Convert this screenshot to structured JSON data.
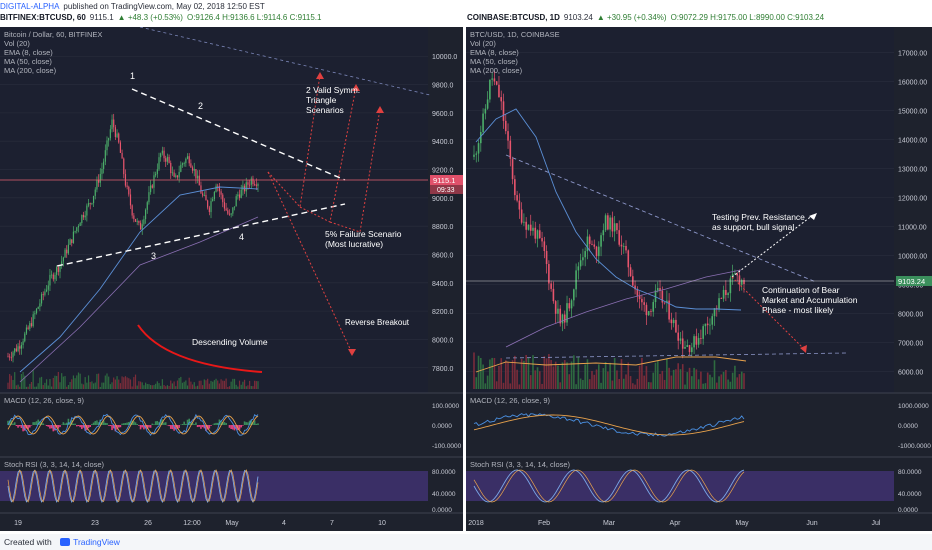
{
  "header": {
    "line1": {
      "user": "DIGITAL-ALPHA",
      "text": "published on TradingView.com, May 02, 2018 12:50 EST"
    },
    "left": {
      "symbol": "BITFINEX:BTCUSD, 60",
      "price": "9115.1",
      "change": "▲ +48.3 (+0.53%)",
      "ohlc": "O:9126.4 H:9136.6 L:9114.6 C:9115.1"
    },
    "right": {
      "symbol": "COINBASE:BTCUSD, 1D",
      "price": "9103.24",
      "change": "▲ +30.95 (+0.34%)",
      "ohlc": "O:9072.29 H:9175.00 L:8990.00 C:9103.24"
    }
  },
  "left_panel": {
    "legend": [
      "Bitcoin / Dollar, 60, BITFINEX",
      "Vol (20)",
      "EMA (8, close)",
      "MA (50, close)",
      "MA (200, close)"
    ],
    "macd_label": "MACD (12, 26, close, 9)",
    "stoch_label": "Stoch RSI (3, 3, 14, 14, close)",
    "annotations": {
      "p1": "1",
      "p2": "2",
      "p3": "3",
      "p4": "4",
      "triangle": "2 Valid Symm.\nTriangle\nScenarios",
      "failure": "5% Failure Scenario\n(Most lucrative)",
      "reverse": "Reverse Breakout",
      "volume": "Descending Volume"
    },
    "price_tag": "9115.1",
    "timer_tag": "09:33"
  },
  "right_panel": {
    "legend": [
      "BTC/USD, 1D, COINBASE",
      "Vol (20)",
      "EMA (8, close)",
      "MA (50, close)",
      "MA (200, close)"
    ],
    "macd_label": "MACD (12, 26, close, 9)",
    "stoch_label": "Stoch RSI (3, 3, 14, 14, close)",
    "annotations": {
      "testing": "Testing Prev. Resistance\nas support, bull signal",
      "continuation": "Continuation of Bear\nMarket and Accumulation\nPhase - most likely"
    },
    "price_tag": "9103.24"
  },
  "chart_data": [
    {
      "type": "candlestick",
      "title": "Bitcoin / Dollar, 60, BITFINEX",
      "x_ticks": [
        "19",
        "23",
        "26",
        "12:00",
        "May",
        "4",
        "7",
        "10"
      ],
      "y_ticks": [
        7800,
        8000,
        8200,
        8400,
        8600,
        8800,
        9000,
        9200,
        9400,
        9600,
        9800,
        10000
      ],
      "ylim": [
        7650,
        10150
      ],
      "close_path": [
        [
          0,
          7880
        ],
        [
          3,
          7950
        ],
        [
          6,
          8080
        ],
        [
          9,
          8250
        ],
        [
          12,
          8420
        ],
        [
          15,
          8530
        ],
        [
          18,
          8690
        ],
        [
          21,
          8860
        ],
        [
          24,
          8980
        ],
        [
          27,
          9200
        ],
        [
          30,
          9540
        ],
        [
          32,
          9370
        ],
        [
          34,
          9080
        ],
        [
          36,
          8880
        ],
        [
          38,
          8780
        ],
        [
          40,
          8960
        ],
        [
          42,
          9140
        ],
        [
          44,
          9310
        ],
        [
          46,
          9270
        ],
        [
          48,
          9110
        ],
        [
          50,
          9240
        ],
        [
          52,
          9290
        ],
        [
          54,
          9170
        ],
        [
          56,
          9010
        ],
        [
          58,
          8930
        ],
        [
          60,
          9120
        ],
        [
          62,
          8960
        ],
        [
          64,
          8850
        ],
        [
          66,
          9020
        ],
        [
          68,
          9060
        ],
        [
          70,
          9130
        ],
        [
          72,
          9115
        ]
      ],
      "last_price": 9115.1,
      "macd_ticks": [
        "100.0000",
        "0.0000",
        "-100.0000"
      ],
      "stoch_ticks": [
        "80.0000",
        "40.0000",
        "0.0000"
      ]
    },
    {
      "type": "candlestick",
      "title": "BTC/USD, 1D, COINBASE",
      "x_ticks": [
        "2018",
        "Feb",
        "Mar",
        "Apr",
        "May",
        "Jun",
        "Jul"
      ],
      "y_ticks": [
        6000,
        7000,
        8000,
        9000,
        10000,
        11000,
        12000,
        13000,
        14000,
        15000,
        16000,
        17000
      ],
      "ylim": [
        5400,
        17600
      ],
      "close_path": [
        [
          0,
          13400
        ],
        [
          3,
          14600
        ],
        [
          6,
          16200
        ],
        [
          9,
          15400
        ],
        [
          12,
          13600
        ],
        [
          15,
          11600
        ],
        [
          18,
          11100
        ],
        [
          21,
          10800
        ],
        [
          24,
          10200
        ],
        [
          27,
          8600
        ],
        [
          30,
          7600
        ],
        [
          33,
          8400
        ],
        [
          36,
          9700
        ],
        [
          39,
          10500
        ],
        [
          42,
          10100
        ],
        [
          45,
          11200
        ],
        [
          48,
          11000
        ],
        [
          51,
          10400
        ],
        [
          54,
          9400
        ],
        [
          57,
          8400
        ],
        [
          60,
          8100
        ],
        [
          63,
          8700
        ],
        [
          66,
          8300
        ],
        [
          69,
          7600
        ],
        [
          72,
          6950
        ],
        [
          75,
          6900
        ],
        [
          78,
          7300
        ],
        [
          81,
          7800
        ],
        [
          84,
          8300
        ],
        [
          87,
          8800
        ],
        [
          90,
          9300
        ],
        [
          93,
          9100
        ]
      ],
      "last_price": 9103.24,
      "macd_ticks": [
        "1000.0000",
        "0.0000",
        "-1000.0000"
      ],
      "stoch_ticks": [
        "80.0000",
        "40.0000",
        "0.0000"
      ]
    }
  ],
  "footer": {
    "created": "Created with",
    "logo": "TradingView"
  }
}
